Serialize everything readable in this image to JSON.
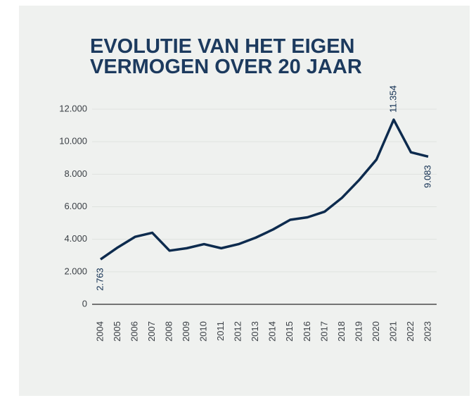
{
  "chart_data": {
    "type": "line",
    "title": [
      "EVOLUTIE VAN HET EIGEN",
      "VERMOGEN OVER 20 JAAR"
    ],
    "categories": [
      "2004",
      "2005",
      "2006",
      "2007",
      "2008",
      "2009",
      "2010",
      "2011",
      "2012",
      "2013",
      "2014",
      "2015",
      "2016",
      "2017",
      "2018",
      "2019",
      "2020",
      "2021",
      "2022",
      "2023"
    ],
    "values": [
      2763,
      3500,
      4150,
      4400,
      3300,
      3450,
      3700,
      3450,
      3700,
      4100,
      4600,
      5200,
      5350,
      5700,
      6550,
      7650,
      8900,
      11354,
      9350,
      9083
    ],
    "value_labels": [
      "2.763",
      null,
      null,
      null,
      null,
      null,
      null,
      null,
      null,
      null,
      null,
      null,
      null,
      null,
      null,
      null,
      null,
      "11.354",
      null,
      "9.083"
    ],
    "color": "#0d2b4e",
    "ylim": [
      0,
      12000
    ],
    "yticks": [
      0,
      {
        "value": 2000,
        "label": "2.000"
      },
      {
        "value": 4000,
        "label": "4.000"
      },
      {
        "value": 6000,
        "label": "6.000"
      },
      {
        "value": 8000,
        "label": "8.000"
      },
      {
        "value": 10000,
        "label": "10.000"
      },
      {
        "value": 12000,
        "label": "12.000"
      }
    ],
    "grid": true
  }
}
